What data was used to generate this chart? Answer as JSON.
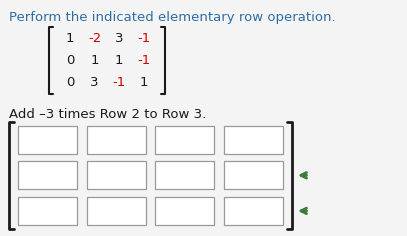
{
  "title": "Perform the indicated elementary row operation.",
  "title_color": "#2e6da4",
  "title_fontsize": 9.5,
  "matrix": [
    [
      1,
      -2,
      3,
      -1
    ],
    [
      0,
      1,
      1,
      -1
    ],
    [
      0,
      3,
      -1,
      1
    ]
  ],
  "instruction": "Add –3 times Row 2 to Row 3.",
  "instruction_color": "#1a1a1a",
  "instruction_fontsize": 9.5,
  "bg_color": "#f4f4f4",
  "box_edge_color": "#999999",
  "bracket_color": "#1a1a1a",
  "arrow_color": "#3a7d3a",
  "matrix_neg_color": "#cc0000",
  "matrix_pos_color": "#1a1a1a"
}
